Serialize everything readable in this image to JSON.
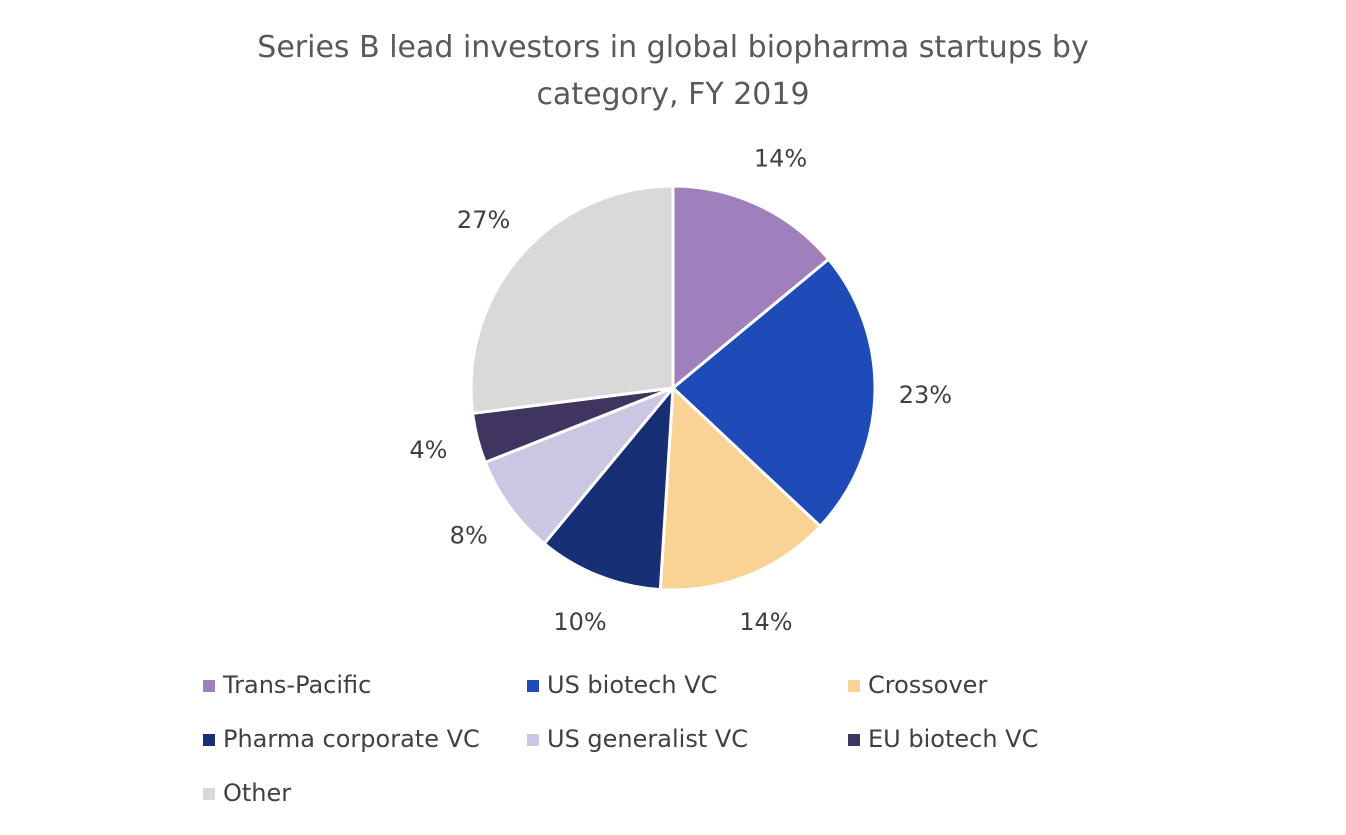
{
  "chart_data": {
    "type": "pie",
    "title": "Series B lead investors in global biopharma startups by category, FY 2019",
    "categories": [
      "Trans-Pacific",
      "US biotech VC",
      "Crossover",
      "Pharma corporate VC",
      "US generalist VC",
      "EU biotech VC",
      "Other"
    ],
    "values": [
      14,
      23,
      14,
      10,
      8,
      4,
      27
    ],
    "value_labels": [
      "14%",
      "23%",
      "14%",
      "10%",
      "8%",
      "4%",
      "27%"
    ],
    "colors": [
      "#a07fbd",
      "#1f4bb8",
      "#f8d394",
      "#172f75",
      "#cbc6e2",
      "#403560",
      "#d9d9d9"
    ],
    "legend": "bottom"
  }
}
